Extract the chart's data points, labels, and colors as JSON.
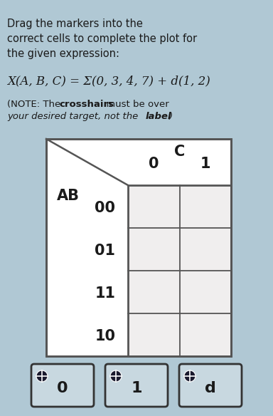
{
  "bg_color": "#b0c8d4",
  "title_lines": [
    "Drag the markers into the",
    "correct cells to complete the plot for",
    "the given expression:"
  ],
  "expression": "X(A, B, C) = Σ(0, 3, 4, 7) + d(1, 2)",
  "kmap_col_label": "C",
  "kmap_row_label": "AB",
  "col_values": [
    "0",
    "1"
  ],
  "row_values": [
    "00",
    "01",
    "11",
    "10"
  ],
  "grid_border": "#555555",
  "marker_labels": [
    "0",
    "1",
    "d"
  ],
  "marker_bg": "#c8d8e0",
  "marker_border": "#333333",
  "marker_icon_color": "#1a1a2e",
  "text_color": "#1a1a1a",
  "table_bg": "#f0eeee"
}
